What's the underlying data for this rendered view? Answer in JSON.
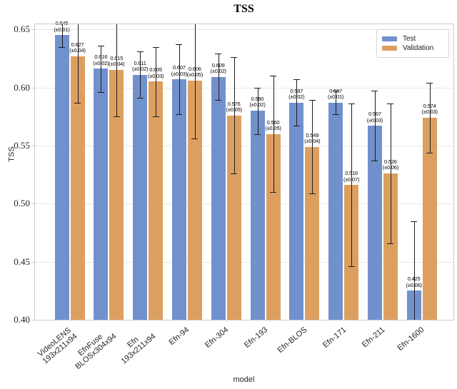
{
  "figure": {
    "title": "TSS",
    "xlabel": "model",
    "ylabel": "TSS"
  },
  "chart_data": {
    "type": "bar",
    "title": "TSS",
    "xlabel": "model",
    "ylabel": "TSS",
    "grid": true,
    "legend_position": "upper right",
    "ylim": [
      0.4,
      0.655
    ],
    "yticks": [
      "0.40",
      "0.45",
      "0.50",
      "0.55",
      "0.60",
      "0.65"
    ],
    "categories": [
      [
        "VideoLENS",
        "193x211x94"
      ],
      [
        "EfnFuse",
        "BLOSx304x94"
      ],
      [
        "Efn",
        "193x211x94"
      ],
      [
        "Efn-94"
      ],
      [
        "Efn-304"
      ],
      [
        "Efn-193"
      ],
      [
        "Efn-BLOS"
      ],
      [
        "Efn-171"
      ],
      [
        "Efn-211"
      ],
      [
        "Efn-1600"
      ]
    ],
    "series": [
      {
        "name": "Test",
        "color": "#7191cd",
        "values": [
          0.645,
          0.616,
          0.611,
          0.607,
          0.609,
          0.58,
          0.587,
          0.587,
          0.567,
          0.425
        ],
        "errors": [
          0.01,
          0.02,
          0.02,
          0.03,
          0.02,
          0.02,
          0.02,
          0.01,
          0.03,
          0.06
        ]
      },
      {
        "name": "Validation",
        "color": "#dd9f60",
        "values": [
          0.627,
          0.615,
          0.605,
          0.606,
          0.576,
          0.56,
          0.549,
          0.516,
          0.526,
          0.574
        ],
        "errors": [
          0.04,
          0.04,
          0.03,
          0.05,
          0.05,
          0.05,
          0.04,
          0.07,
          0.06,
          0.03
        ]
      }
    ],
    "bar_label_format": "value (±error)"
  }
}
